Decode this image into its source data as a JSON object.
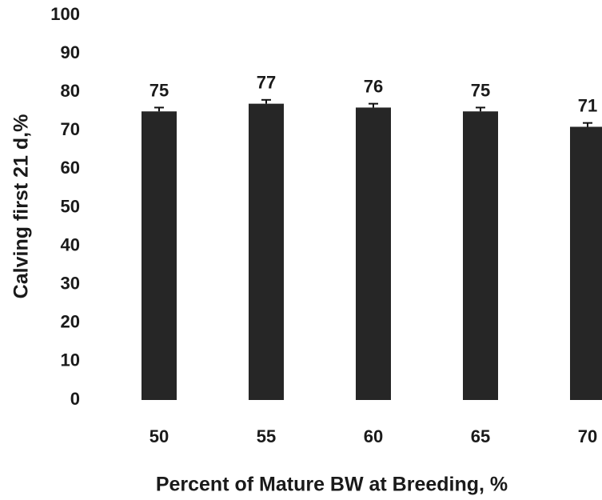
{
  "chart_data": {
    "type": "bar",
    "categories": [
      "50",
      "55",
      "60",
      "65",
      "70"
    ],
    "values": [
      75,
      77,
      76,
      75,
      71
    ],
    "errors": [
      1,
      1,
      1,
      1,
      1
    ],
    "color": "#262626",
    "xlabel": "Percent of Mature BW at Breeding, %",
    "ylabel": "Calving first 21 d,%",
    "ylim": [
      0,
      100
    ],
    "yticks": [
      0,
      10,
      20,
      30,
      40,
      50,
      60,
      70,
      80,
      90,
      100
    ],
    "grid": false
  }
}
